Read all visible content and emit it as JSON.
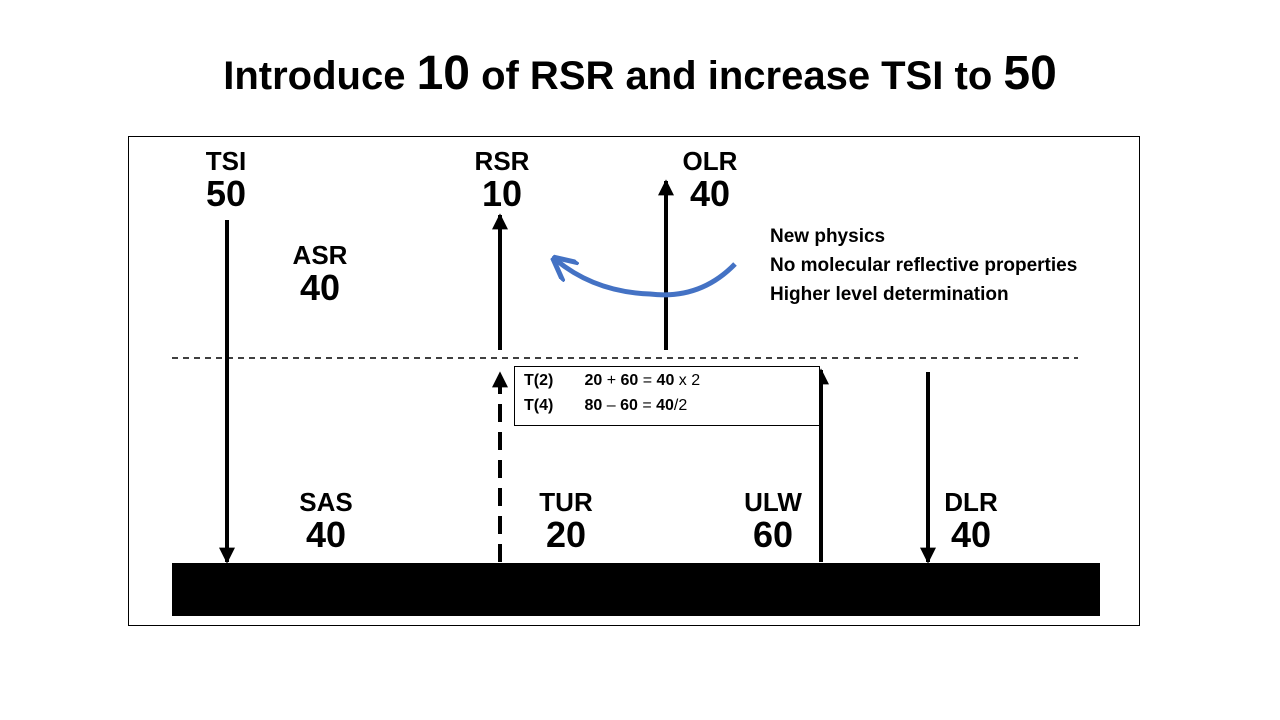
{
  "title": {
    "part1": "Introduce ",
    "num1": "10",
    "part2": " of RSR and increase TSI to ",
    "num2": "50"
  },
  "labels": {
    "tsi": {
      "name": "TSI",
      "value": "50"
    },
    "rsr": {
      "name": "RSR",
      "value": "10"
    },
    "olr": {
      "name": "OLR",
      "value": "40"
    },
    "asr": {
      "name": "ASR",
      "value": "40"
    },
    "sas": {
      "name": "SAS",
      "value": "40"
    },
    "tur": {
      "name": "TUR",
      "value": "20"
    },
    "ulw": {
      "name": "ULW",
      "value": "60"
    },
    "dlr": {
      "name": "DLR",
      "value": "40"
    }
  },
  "notes": [
    "New physics",
    "No molecular reflective properties",
    "Higher level determination"
  ],
  "formula": {
    "row1": {
      "label": "T(2)",
      "a": "20",
      "op1": "+",
      "b": "60",
      "eq": "=",
      "c": "40",
      "tail": "x 2"
    },
    "row2": {
      "label": "T(4)",
      "a": "80",
      "op1": "–",
      "b": "60",
      "eq": "=",
      "c": "40",
      "tail": "/2"
    }
  },
  "colors": {
    "arc": "#4472C4",
    "ground": "#000000"
  }
}
